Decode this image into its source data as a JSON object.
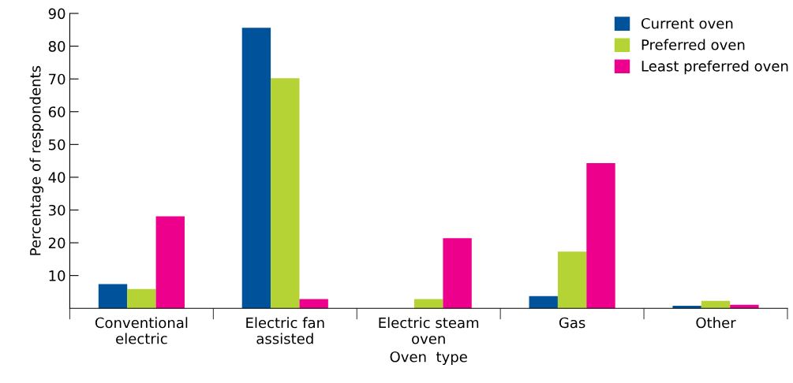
{
  "chart_data": {
    "type": "bar",
    "xlabel": "Oven  type",
    "ylabel": "Percentage of respondents",
    "categories": [
      "Conventional\nelectric",
      "Electric fan\nassisted",
      "Electric steam\noven",
      "Gas",
      "Other"
    ],
    "series": [
      {
        "name": "Current oven",
        "color": "#00529b",
        "values": [
          7.4,
          85.6,
          0,
          3.7,
          0.8
        ]
      },
      {
        "name": "Preferred oven",
        "color": "#b5d334",
        "values": [
          5.9,
          70.2,
          2.8,
          17.3,
          2.3
        ]
      },
      {
        "name": "Least preferred oven",
        "color": "#ec008c",
        "values": [
          28.1,
          2.8,
          21.4,
          44.3,
          1.1
        ]
      }
    ],
    "ylim": [
      0,
      90
    ],
    "yticks": [
      10,
      20,
      30,
      40,
      50,
      60,
      70,
      80,
      90
    ],
    "grid": false,
    "legend": "top right"
  }
}
